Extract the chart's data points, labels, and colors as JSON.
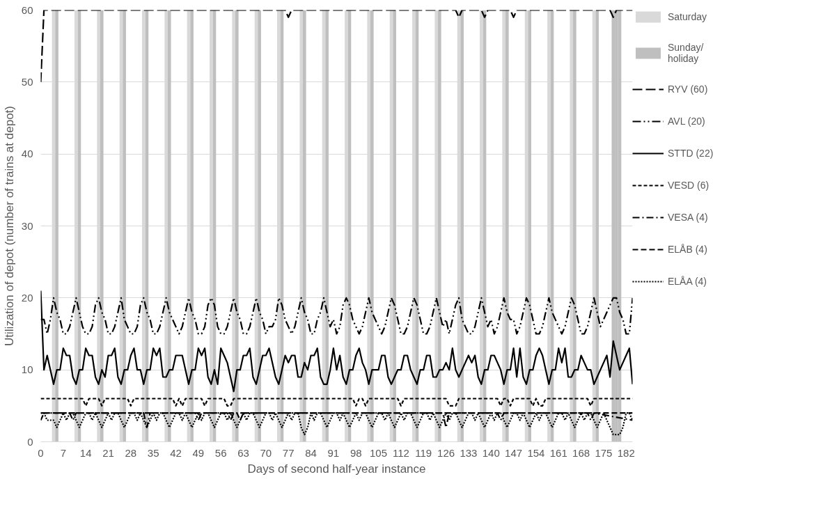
{
  "chart_data": {
    "type": "line",
    "xlabel": "Days of second half-year instance",
    "ylabel": "Utilization of depot (number of trains at depot)",
    "xlim": [
      0,
      184
    ],
    "ylim": [
      0,
      60
    ],
    "xticks": [
      0,
      7,
      14,
      21,
      28,
      35,
      42,
      49,
      56,
      63,
      70,
      77,
      84,
      91,
      98,
      105,
      112,
      119,
      126,
      133,
      140,
      147,
      154,
      161,
      168,
      175,
      182
    ],
    "yticks": [
      0,
      10,
      20,
      30,
      40,
      50,
      60
    ],
    "grid": "y",
    "legend": "right",
    "x": [
      0,
      1,
      2,
      3,
      4,
      5,
      6,
      7,
      8,
      9,
      10,
      11,
      12,
      13,
      14,
      15,
      16,
      17,
      18,
      19,
      20,
      21,
      22,
      23,
      24,
      25,
      26,
      27,
      28,
      29,
      30,
      31,
      32,
      33,
      34,
      35,
      36,
      37,
      38,
      39,
      40,
      41,
      42,
      43,
      44,
      45,
      46,
      47,
      48,
      49,
      50,
      51,
      52,
      53,
      54,
      55,
      56,
      57,
      58,
      59,
      60,
      61,
      62,
      63,
      64,
      65,
      66,
      67,
      68,
      69,
      70,
      71,
      72,
      73,
      74,
      75,
      76,
      77,
      78,
      79,
      80,
      81,
      82,
      83,
      84,
      85,
      86,
      87,
      88,
      89,
      90,
      91,
      92,
      93,
      94,
      95,
      96,
      97,
      98,
      99,
      100,
      101,
      102,
      103,
      104,
      105,
      106,
      107,
      108,
      109,
      110,
      111,
      112,
      113,
      114,
      115,
      116,
      117,
      118,
      119,
      120,
      121,
      122,
      123,
      124,
      125,
      126,
      127,
      128,
      129,
      130,
      131,
      132,
      133,
      134,
      135,
      136,
      137,
      138,
      139,
      140,
      141,
      142,
      143,
      144,
      145,
      146,
      147,
      148,
      149,
      150,
      151,
      152,
      153,
      154,
      155,
      156,
      157,
      158,
      159,
      160,
      161,
      162,
      163,
      164,
      165,
      166,
      167,
      168,
      169,
      170,
      171,
      172,
      173,
      174,
      175,
      176,
      177,
      178,
      179,
      180,
      181,
      182,
      183,
      184
    ],
    "series": [
      {
        "name": "Saturday",
        "type": "bar",
        "color": "#d9d9d9",
        "x": [
          4,
          11,
          18,
          25,
          32,
          39,
          46,
          53,
          60,
          67,
          74,
          81,
          88,
          95,
          102,
          109,
          116,
          123,
          130,
          137,
          144,
          151,
          158,
          165,
          172
        ],
        "values": [
          60,
          60,
          60,
          60,
          60,
          60,
          60,
          60,
          60,
          60,
          60,
          60,
          60,
          60,
          60,
          60,
          60,
          60,
          60,
          60,
          60,
          60,
          60,
          60,
          60
        ]
      },
      {
        "name": "Sunday/\nholiday",
        "type": "bar",
        "color": "#bfbfbf",
        "x": [
          5,
          12,
          19,
          26,
          33,
          40,
          47,
          54,
          61,
          68,
          75,
          82,
          89,
          96,
          103,
          110,
          117,
          124,
          131,
          138,
          145,
          152,
          159,
          166,
          173,
          178,
          179,
          180
        ],
        "values": [
          60,
          60,
          60,
          60,
          60,
          60,
          60,
          60,
          60,
          60,
          60,
          60,
          60,
          60,
          60,
          60,
          60,
          60,
          60,
          60,
          60,
          60,
          60,
          60,
          60,
          60,
          60,
          60
        ]
      },
      {
        "name": "RYV (60)",
        "color": "#000000",
        "line_style": "longdash",
        "x": [
          0,
          1,
          76,
          77,
          78,
          129,
          130,
          131,
          137,
          138,
          139,
          146,
          147,
          148,
          177,
          178,
          179,
          184
        ],
        "values": [
          50,
          60,
          60,
          59,
          60,
          60,
          59,
          60,
          60,
          59,
          60,
          60,
          59,
          60,
          60,
          59,
          60,
          60
        ]
      },
      {
        "name": "AVL (20)",
        "color": "#000000",
        "line_style": "dashdotdot",
        "values": [
          17,
          17,
          15,
          17,
          20,
          18,
          17,
          15,
          15,
          16,
          18,
          20,
          18,
          16,
          15,
          15,
          16,
          19,
          20,
          18,
          17,
          15,
          15,
          16,
          18,
          20,
          17,
          16,
          15,
          15,
          16,
          19,
          20,
          18,
          17,
          15,
          15,
          16,
          18,
          20,
          18,
          17,
          16,
          15,
          16,
          18,
          20,
          18,
          17,
          15,
          15,
          16,
          19,
          20,
          19,
          16,
          15,
          15,
          16,
          18,
          20,
          18,
          17,
          15,
          15,
          16,
          18,
          20,
          18,
          17,
          15,
          16,
          16,
          17,
          20,
          19,
          17,
          16,
          15,
          16,
          18,
          20,
          18,
          17,
          15,
          15,
          17,
          18,
          20,
          18,
          16,
          17,
          15,
          16,
          19,
          20,
          19,
          17,
          16,
          15,
          16,
          18,
          20,
          18,
          17,
          16,
          15,
          16,
          18,
          20,
          19,
          17,
          15,
          15,
          16,
          18,
          20,
          19,
          17,
          15,
          15,
          16,
          18,
          20,
          18,
          16,
          17,
          15,
          17,
          19,
          20,
          17,
          16,
          15,
          15,
          16,
          18,
          20,
          18,
          16,
          17,
          15,
          16,
          18,
          20,
          18,
          17,
          17,
          15,
          16,
          18,
          20,
          19,
          17,
          15,
          15,
          16,
          18,
          20,
          18,
          17,
          16,
          15,
          16,
          18,
          20,
          19,
          17,
          15,
          15,
          16,
          18,
          20,
          18,
          16,
          17,
          18,
          19,
          20,
          20,
          18,
          17,
          15,
          15,
          20
        ]
      },
      {
        "name": "STTD (22)",
        "color": "#000000",
        "line_style": "solid",
        "values": [
          21,
          10,
          12,
          10,
          8,
          10,
          10,
          13,
          12,
          12,
          9,
          8,
          10,
          10,
          13,
          12,
          12,
          9,
          8,
          10,
          9,
          12,
          12,
          13,
          9,
          8,
          10,
          10,
          12,
          13,
          10,
          10,
          8,
          10,
          10,
          13,
          12,
          13,
          9,
          9,
          10,
          10,
          12,
          12,
          12,
          10,
          8,
          10,
          10,
          13,
          12,
          13,
          9,
          8,
          10,
          8,
          13,
          12,
          11,
          9,
          7,
          10,
          10,
          12,
          12,
          13,
          9,
          8,
          10,
          12,
          12,
          13,
          11,
          9,
          8,
          10,
          12,
          11,
          12,
          12,
          9,
          9,
          11,
          10,
          12,
          12,
          13,
          9,
          8,
          8,
          10,
          13,
          10,
          12,
          9,
          8,
          10,
          10,
          12,
          13,
          11,
          10,
          8,
          10,
          10,
          10,
          12,
          12,
          9,
          8,
          9,
          10,
          10,
          12,
          12,
          10,
          9,
          8,
          10,
          10,
          12,
          12,
          9,
          9,
          10,
          10,
          11,
          10,
          13,
          10,
          9,
          10,
          11,
          12,
          11,
          12,
          9,
          8,
          10,
          10,
          12,
          12,
          11,
          10,
          8,
          10,
          10,
          13,
          9,
          13,
          9,
          8,
          10,
          10,
          12,
          13,
          12,
          10,
          8,
          10,
          10,
          13,
          11,
          13,
          9,
          9,
          10,
          10,
          12,
          11,
          10,
          10,
          8,
          9,
          10,
          11,
          12,
          9,
          14,
          12,
          10,
          11,
          12,
          13,
          8
        ]
      },
      {
        "name": "VESD (6)",
        "color": "#000000",
        "line_style": "dashed",
        "x": [
          0,
          13,
          14,
          15,
          18,
          19,
          20,
          27,
          28,
          29,
          41,
          42,
          43,
          44,
          45,
          50,
          51,
          52,
          57,
          58,
          59,
          60,
          97,
          98,
          99,
          100,
          101,
          102,
          111,
          112,
          113,
          126,
          127,
          129,
          130,
          142,
          143,
          144,
          145,
          146,
          147,
          152,
          153,
          154,
          155,
          156,
          157,
          170,
          171,
          172,
          184
        ],
        "values": [
          6,
          6,
          5,
          6,
          6,
          5,
          6,
          6,
          5,
          6,
          6,
          5,
          6,
          5,
          6,
          6,
          5,
          6,
          6,
          5,
          5,
          6,
          6,
          5,
          6,
          6,
          5,
          6,
          6,
          5,
          6,
          6,
          5,
          5,
          6,
          6,
          5,
          6,
          6,
          5,
          6,
          6,
          5,
          6,
          5,
          5,
          6,
          6,
          5,
          6,
          6
        ]
      },
      {
        "name": "VESA (4)",
        "color": "#000000",
        "line_style": "dashdot",
        "x": [
          0,
          9,
          10,
          11,
          32,
          33,
          34,
          48,
          49,
          50,
          58,
          59,
          60,
          125,
          126,
          127,
          142,
          143,
          144,
          170,
          171,
          172,
          184
        ],
        "values": [
          4,
          4,
          3,
          4,
          4,
          2,
          4,
          4,
          3,
          4,
          4,
          3,
          4,
          4,
          2,
          4,
          4,
          3,
          4,
          4,
          3,
          4,
          3
        ]
      },
      {
        "name": "ELÅB (4)",
        "color": "#000000",
        "line_style": "mediumdash",
        "x": [
          0,
          1,
          61,
          62,
          63,
          184
        ],
        "values": [
          3,
          4,
          4,
          3,
          4,
          4
        ]
      },
      {
        "name": "ELÅA (4)",
        "color": "#000000",
        "line_style": "dotted",
        "values": [
          4,
          4,
          3,
          3,
          3,
          2,
          3,
          4,
          3,
          4,
          4,
          3,
          2,
          3,
          4,
          4,
          3,
          4,
          3,
          2,
          3,
          4,
          3,
          4,
          4,
          3,
          2,
          3,
          4,
          4,
          3,
          4,
          3,
          2,
          3,
          4,
          3,
          4,
          4,
          3,
          2,
          3,
          4,
          4,
          3,
          4,
          3,
          2,
          3,
          4,
          3,
          4,
          4,
          3,
          2,
          3,
          4,
          4,
          3,
          4,
          3,
          2,
          3,
          4,
          3,
          4,
          4,
          3,
          2,
          3,
          4,
          4,
          3,
          4,
          3,
          2,
          3,
          4,
          3,
          4,
          4,
          2,
          1,
          2,
          4,
          3,
          4,
          4,
          3,
          2,
          3,
          4,
          4,
          3,
          4,
          3,
          2,
          3,
          4,
          3,
          4,
          4,
          3,
          2,
          3,
          4,
          4,
          3,
          4,
          3,
          2,
          3,
          4,
          3,
          4,
          4,
          3,
          2,
          3,
          4,
          4,
          3,
          4,
          3,
          2,
          3,
          4,
          3,
          4,
          4,
          3,
          2,
          3,
          4,
          4,
          3,
          4,
          3,
          2,
          3,
          4,
          3,
          4,
          4,
          3,
          2,
          3,
          4,
          4,
          3,
          4,
          3,
          2,
          3,
          4,
          3,
          4,
          4,
          3,
          2,
          3,
          4,
          4,
          3,
          4,
          3,
          2,
          3,
          4,
          3,
          4,
          4,
          3,
          2,
          3,
          4,
          3,
          2,
          1,
          1,
          1,
          2,
          4,
          4,
          3
        ]
      }
    ]
  }
}
